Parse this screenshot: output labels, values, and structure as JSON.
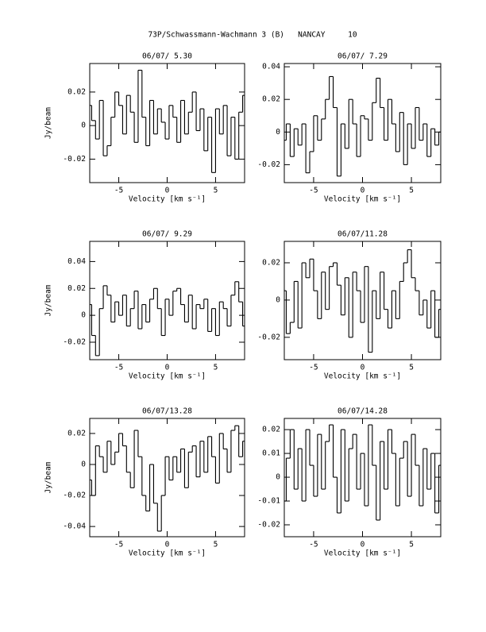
{
  "title": "73P/Schwassmann-Wachmann 3 (B)   NANCAY     10",
  "chart_data": [
    {
      "type": "step",
      "title": "06/07/ 5.30",
      "x_label": "Velocity [km s⁻¹]",
      "y_label": "Jy/beam",
      "xlim": [
        -8,
        8
      ],
      "ylim": [
        -0.034,
        0.037
      ],
      "xticks": [
        -5,
        0,
        5
      ],
      "yticks": [
        -0.02,
        0,
        0.02
      ],
      "x": [
        -8,
        -7.6,
        -7.2,
        -6.8,
        -6.4,
        -6,
        -5.6,
        -5.2,
        -4.8,
        -4.4,
        -4,
        -3.6,
        -3.2,
        -2.8,
        -2.4,
        -2,
        -1.6,
        -1.2,
        -0.8,
        -0.4,
        0,
        0.4,
        0.8,
        1.2,
        1.6,
        2,
        2.4,
        2.8,
        3.2,
        3.6,
        4,
        4.4,
        4.8,
        5.2,
        5.6,
        6,
        6.4,
        6.8,
        7.2,
        7.6,
        8
      ],
      "values": [
        0.012,
        0.003,
        -0.008,
        0.015,
        -0.018,
        -0.012,
        0.005,
        0.02,
        0.012,
        -0.005,
        0.018,
        0.008,
        -0.01,
        0.033,
        0.005,
        -0.012,
        0.015,
        -0.005,
        0.01,
        0.002,
        -0.008,
        0.012,
        0.005,
        -0.01,
        0.015,
        -0.005,
        0.008,
        0.02,
        -0.003,
        0.01,
        -0.015,
        0.005,
        -0.028,
        0.01,
        -0.005,
        0.012,
        -0.018,
        0.005,
        -0.02,
        0.008,
        0.018
      ],
      "color": "#000000"
    },
    {
      "type": "step",
      "title": "06/07/ 7.29",
      "x_label": "Velocity [km s⁻¹]",
      "xlim": [
        -8,
        8
      ],
      "ylim": [
        -0.031,
        0.042
      ],
      "xticks": [
        -5,
        0,
        5
      ],
      "yticks": [
        -0.02,
        0,
        0.02,
        0.04
      ],
      "x": [
        -8,
        -7.6,
        -7.2,
        -6.8,
        -6.4,
        -6,
        -5.6,
        -5.2,
        -4.8,
        -4.4,
        -4,
        -3.6,
        -3.2,
        -2.8,
        -2.4,
        -2,
        -1.6,
        -1.2,
        -0.8,
        -0.4,
        0,
        0.4,
        0.8,
        1.2,
        1.6,
        2,
        2.4,
        2.8,
        3.2,
        3.6,
        4,
        4.4,
        4.8,
        5.2,
        5.6,
        6,
        6.4,
        6.8,
        7.2,
        7.6,
        8
      ],
      "values": [
        -0.005,
        0.005,
        -0.015,
        0.002,
        -0.008,
        0.005,
        -0.025,
        -0.012,
        0.01,
        -0.005,
        0.008,
        0.02,
        0.034,
        0.015,
        -0.027,
        0.005,
        -0.01,
        0.02,
        0.005,
        -0.015,
        0.01,
        0.008,
        -0.005,
        0.018,
        0.033,
        0.015,
        -0.005,
        0.02,
        0.005,
        -0.012,
        0.012,
        -0.02,
        0.005,
        -0.01,
        0.015,
        -0.005,
        0.005,
        -0.015,
        0.002,
        -0.008,
        0
      ],
      "color": "#000000"
    },
    {
      "type": "step",
      "title": "06/07/ 9.29",
      "x_label": "Velocity [km s⁻¹]",
      "y_label": "Jy/beam",
      "xlim": [
        -8,
        8
      ],
      "ylim": [
        -0.033,
        0.055
      ],
      "xticks": [
        -5,
        0,
        5
      ],
      "yticks": [
        -0.02,
        0,
        0.02,
        0.04
      ],
      "x": [
        -8,
        -7.6,
        -7.2,
        -6.8,
        -6.4,
        -6,
        -5.6,
        -5.2,
        -4.8,
        -4.4,
        -4,
        -3.6,
        -3.2,
        -2.8,
        -2.4,
        -2,
        -1.6,
        -1.2,
        -0.8,
        -0.4,
        0,
        0.4,
        0.8,
        1.2,
        1.6,
        2,
        2.4,
        2.8,
        3.2,
        3.6,
        4,
        4.4,
        4.8,
        5.2,
        5.6,
        6,
        6.4,
        6.8,
        7.2,
        7.6,
        8
      ],
      "values": [
        0.008,
        -0.015,
        -0.03,
        0.005,
        0.022,
        0.015,
        -0.005,
        0.01,
        0,
        0.015,
        -0.008,
        0.005,
        0.018,
        -0.01,
        0.008,
        -0.005,
        0.012,
        0.02,
        0.005,
        -0.015,
        0.012,
        0,
        0.018,
        0.02,
        0.008,
        -0.005,
        0.015,
        -0.01,
        0.008,
        0.005,
        0.012,
        -0.012,
        0.005,
        -0.015,
        0.01,
        0.005,
        -0.008,
        0.015,
        0.025,
        0.01,
        -0.008
      ],
      "color": "#000000"
    },
    {
      "type": "step",
      "title": "06/07/11.28",
      "x_label": "Velocity [km s⁻¹]",
      "xlim": [
        -8,
        8
      ],
      "ylim": [
        -0.032,
        0.0315
      ],
      "xticks": [
        -5,
        0,
        5
      ],
      "yticks": [
        -0.02,
        0,
        0.02
      ],
      "x": [
        -8,
        -7.6,
        -7.2,
        -6.8,
        -6.4,
        -6,
        -5.6,
        -5.2,
        -4.8,
        -4.4,
        -4,
        -3.6,
        -3.2,
        -2.8,
        -2.4,
        -2,
        -1.6,
        -1.2,
        -0.8,
        -0.4,
        0,
        0.4,
        0.8,
        1.2,
        1.6,
        2,
        2.4,
        2.8,
        3.2,
        3.6,
        4,
        4.4,
        4.8,
        5.2,
        5.6,
        6,
        6.4,
        6.8,
        7.2,
        7.6,
        8
      ],
      "values": [
        0.005,
        -0.018,
        -0.012,
        0.01,
        -0.015,
        0.02,
        0.012,
        0.022,
        0.005,
        -0.01,
        0.015,
        -0.005,
        0.018,
        0.02,
        0.008,
        -0.008,
        0.012,
        -0.02,
        0.015,
        0.005,
        -0.012,
        0.018,
        -0.028,
        0.005,
        -0.01,
        0.015,
        -0.005,
        -0.015,
        0.005,
        -0.01,
        0.01,
        0.02,
        0.027,
        0.012,
        0.005,
        -0.008,
        0,
        -0.015,
        0.005,
        -0.02,
        -0.005
      ],
      "color": "#000000"
    },
    {
      "type": "step",
      "title": "06/07/13.28",
      "x_label": "Velocity [km s⁻¹]",
      "y_label": "Jy/beam",
      "xlim": [
        -8,
        8
      ],
      "ylim": [
        -0.0466,
        0.0297
      ],
      "xticks": [
        -5,
        0,
        5
      ],
      "yticks": [
        -0.04,
        -0.02,
        0,
        0.02
      ],
      "x": [
        -8,
        -7.6,
        -7.2,
        -6.8,
        -6.4,
        -6,
        -5.6,
        -5.2,
        -4.8,
        -4.4,
        -4,
        -3.6,
        -3.2,
        -2.8,
        -2.4,
        -2,
        -1.6,
        -1.2,
        -0.8,
        -0.4,
        0,
        0.4,
        0.8,
        1.2,
        1.6,
        2,
        2.4,
        2.8,
        3.2,
        3.6,
        4,
        4.4,
        4.8,
        5.2,
        5.6,
        6,
        6.4,
        6.8,
        7.2,
        7.6,
        8
      ],
      "values": [
        -0.01,
        -0.02,
        0.012,
        0.005,
        -0.005,
        0.015,
        0,
        0.008,
        0.02,
        0.012,
        -0.005,
        -0.015,
        0.022,
        0.005,
        -0.02,
        -0.03,
        0,
        -0.025,
        -0.043,
        -0.02,
        0.005,
        -0.01,
        0.005,
        -0.005,
        0.01,
        -0.015,
        0.008,
        0.012,
        -0.008,
        0.015,
        -0.005,
        0.018,
        0.005,
        -0.012,
        0.02,
        0.01,
        -0.005,
        0.022,
        0.025,
        0.005,
        0.015
      ],
      "color": "#000000"
    },
    {
      "type": "step",
      "title": "06/07/14.28",
      "x_label": "Velocity [km s⁻¹]",
      "xlim": [
        -8,
        8
      ],
      "ylim": [
        -0.025,
        0.0247
      ],
      "xticks": [
        -5,
        0,
        5
      ],
      "yticks": [
        -0.02,
        -0.01,
        0,
        0.01,
        0.02
      ],
      "x": [
        -8,
        -7.6,
        -7.2,
        -6.8,
        -6.4,
        -6,
        -5.6,
        -5.2,
        -4.8,
        -4.4,
        -4,
        -3.6,
        -3.2,
        -2.8,
        -2.4,
        -2,
        -1.6,
        -1.2,
        -0.8,
        -0.4,
        0,
        0.4,
        0.8,
        1.2,
        1.6,
        2,
        2.4,
        2.8,
        3.2,
        3.6,
        4,
        4.4,
        4.8,
        5.2,
        5.6,
        6,
        6.4,
        6.8,
        7.2,
        7.6,
        8
      ],
      "values": [
        -0.01,
        0.008,
        0.02,
        -0.005,
        0.012,
        -0.01,
        0.02,
        0.005,
        -0.008,
        0.018,
        -0.005,
        0.015,
        0.022,
        0,
        -0.015,
        0.02,
        -0.01,
        0.012,
        0.018,
        -0.005,
        0.01,
        -0.012,
        0.022,
        0.005,
        -0.018,
        0.015,
        -0.005,
        0.02,
        0.01,
        -0.012,
        0.008,
        0.015,
        -0.008,
        0.018,
        0.005,
        -0.012,
        0.012,
        -0.005,
        0.01,
        -0.015,
        0.005
      ],
      "color": "#000000"
    }
  ]
}
